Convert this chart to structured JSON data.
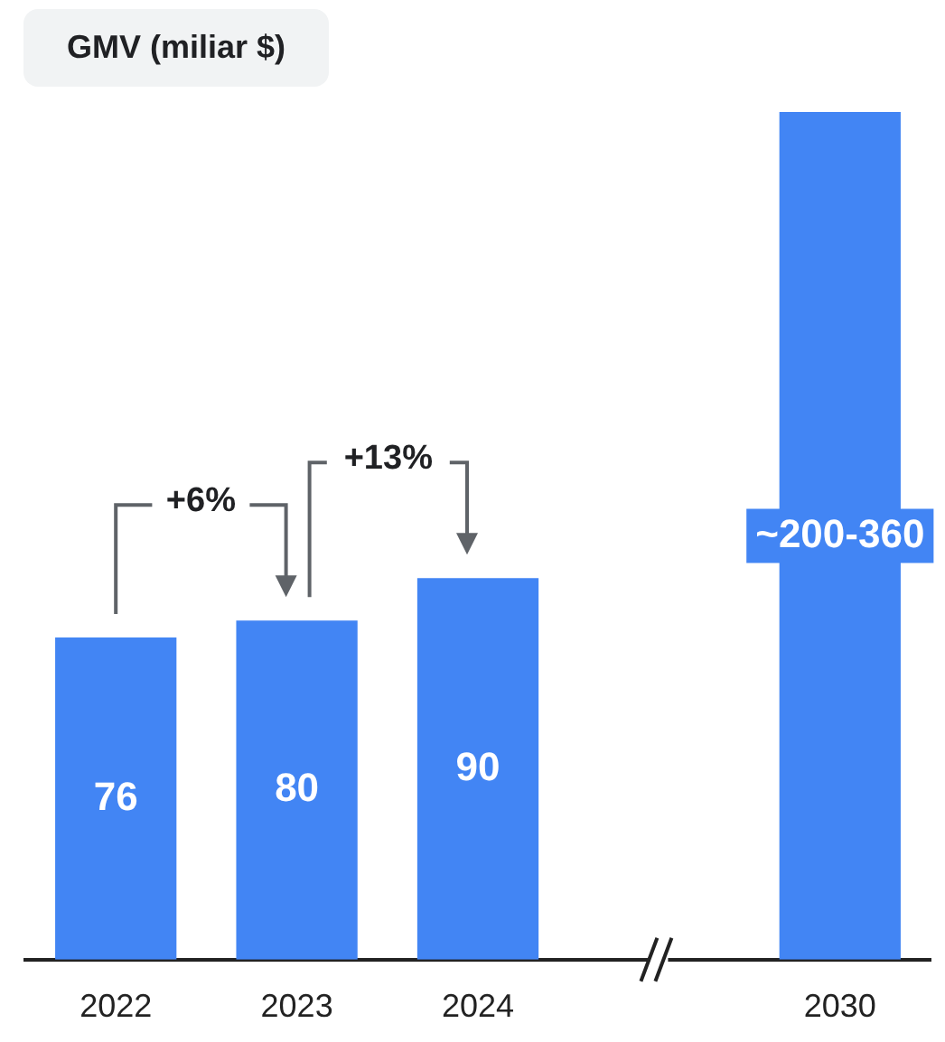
{
  "chart_data": {
    "type": "bar",
    "title": "GMV (miliar $)",
    "categories": [
      "2022",
      "2023",
      "2024",
      null,
      "2030"
    ],
    "values": [
      76,
      80,
      90,
      null,
      200
    ],
    "value_labels": [
      "76",
      "80",
      "90",
      null,
      "~200-360"
    ],
    "color": "#4285f4",
    "annotations": [
      "+6%",
      "+13%"
    ]
  }
}
